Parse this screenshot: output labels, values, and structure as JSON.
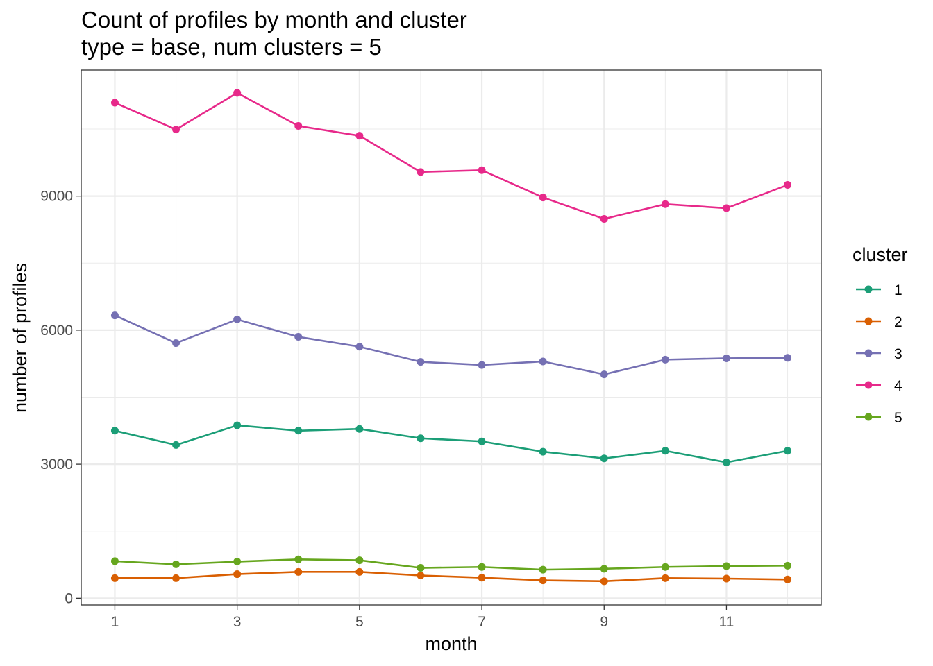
{
  "chart_data": {
    "type": "line",
    "title": "Count of profiles by month and cluster",
    "subtitle": "type = base, num clusters = 5",
    "xlabel": "month",
    "ylabel": "number of profiles",
    "x": [
      1,
      2,
      3,
      4,
      5,
      6,
      7,
      8,
      9,
      10,
      11,
      12
    ],
    "x_ticks": [
      "1",
      "3",
      "5",
      "7",
      "9",
      "11"
    ],
    "y_ticks": [
      "0",
      "3000",
      "6000",
      "9000"
    ],
    "xlim": [
      0.45,
      12.55
    ],
    "ylim": [
      -150,
      11820
    ],
    "grid": true,
    "legend_title": "cluster",
    "legend_position": "right",
    "series": [
      {
        "name": "1",
        "color": "#1b9e77",
        "values": [
          3750,
          3430,
          3870,
          3750,
          3790,
          3580,
          3510,
          3280,
          3130,
          3300,
          3040,
          3300
        ]
      },
      {
        "name": "2",
        "color": "#d95f02",
        "values": [
          450,
          450,
          540,
          590,
          590,
          510,
          460,
          400,
          380,
          450,
          440,
          420
        ]
      },
      {
        "name": "3",
        "color": "#7570b3",
        "values": [
          6330,
          5710,
          6240,
          5850,
          5630,
          5290,
          5220,
          5300,
          5010,
          5340,
          5370,
          5380
        ]
      },
      {
        "name": "4",
        "color": "#e7298a",
        "values": [
          11090,
          10490,
          11310,
          10570,
          10350,
          9540,
          9580,
          8970,
          8490,
          8820,
          8730,
          9250
        ]
      },
      {
        "name": "5",
        "color": "#66a61e",
        "values": [
          830,
          760,
          820,
          870,
          850,
          680,
          700,
          640,
          660,
          700,
          720,
          730
        ]
      }
    ]
  }
}
